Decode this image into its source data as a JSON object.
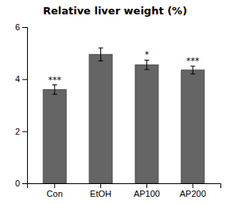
{
  "chart_data": {
    "type": "bar",
    "title": "Relative liver weight (%)",
    "categories": [
      "Con",
      "EtOH",
      "AP100",
      "AP200"
    ],
    "values": [
      3.6,
      4.95,
      4.55,
      4.35
    ],
    "errors": [
      0.18,
      0.25,
      0.18,
      0.15
    ],
    "significance": [
      "***",
      null,
      "*",
      "***"
    ],
    "color": "#656565",
    "ylim": [
      0,
      6
    ],
    "yticks": [
      0,
      2,
      4,
      6
    ],
    "grid": false
  }
}
